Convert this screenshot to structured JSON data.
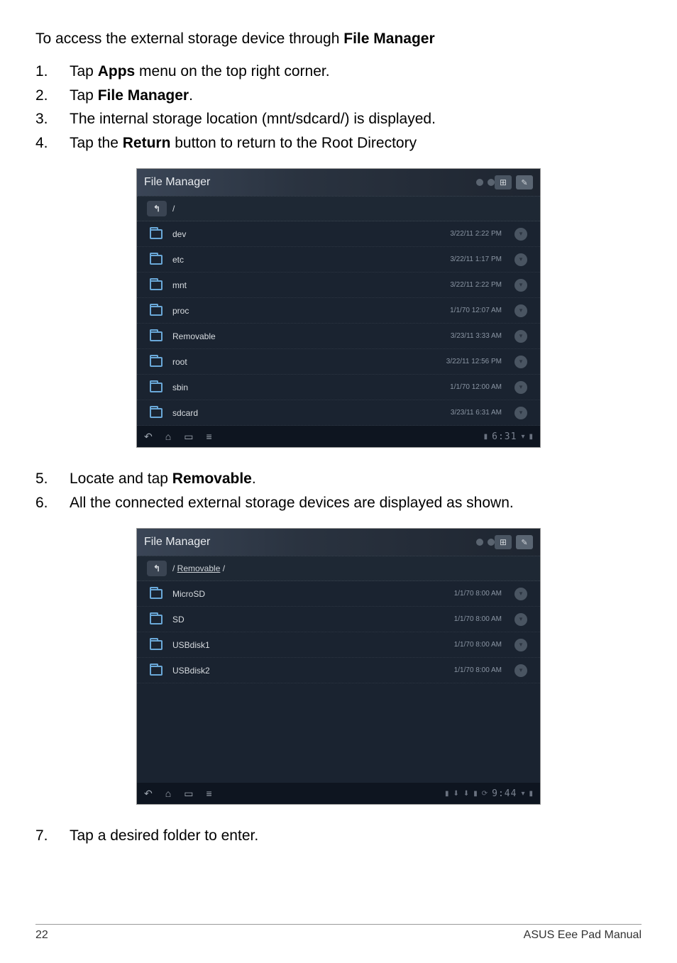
{
  "intro": {
    "prefix": "To access the external storage device through ",
    "bold": "File Manager"
  },
  "steps1": [
    {
      "num": "1.",
      "pre": "Tap ",
      "b": "Apps",
      "post": " menu on the top right corner."
    },
    {
      "num": "2.",
      "pre": "Tap ",
      "b": "File Manager",
      "post": "."
    },
    {
      "num": "3.",
      "text": "The internal storage location (mnt/sdcard/) is displayed."
    },
    {
      "num": "4.",
      "pre": "Tap the ",
      "b": "Return",
      "post": " button to return to the Root Directory"
    }
  ],
  "steps2": [
    {
      "num": "5.",
      "pre": "Locate and tap ",
      "b": "Removable",
      "post": "."
    },
    {
      "num": "6.",
      "text": "All the connected external storage devices are displayed as shown."
    }
  ],
  "steps3": [
    {
      "num": "7.",
      "text": "Tap a desired folder to enter."
    }
  ],
  "shot1": {
    "title": "File Manager",
    "path": "/",
    "files": [
      {
        "name": "dev",
        "date": "3/22/11 2:22 PM"
      },
      {
        "name": "etc",
        "date": "3/22/11 1:17 PM"
      },
      {
        "name": "mnt",
        "date": "3/22/11 2:22 PM"
      },
      {
        "name": "proc",
        "date": "1/1/70 12:07 AM"
      },
      {
        "name": "Removable",
        "date": "3/23/11 3:33 AM"
      },
      {
        "name": "root",
        "date": "3/22/11 12:56 PM"
      },
      {
        "name": "sbin",
        "date": "1/1/70 12:00 AM"
      },
      {
        "name": "sdcard",
        "date": "3/23/11 6:31 AM"
      }
    ],
    "clock": "6:31"
  },
  "shot2": {
    "title": "File Manager",
    "path_prefix": "/ ",
    "path_link": "Removable",
    "path_suffix": " /",
    "files": [
      {
        "name": "MicroSD",
        "date": "1/1/70 8:00 AM"
      },
      {
        "name": "SD",
        "date": "1/1/70 8:00 AM"
      },
      {
        "name": "USBdisk1",
        "date": "1/1/70 8:00 AM"
      },
      {
        "name": "USBdisk2",
        "date": "1/1/70 8:00 AM"
      }
    ],
    "clock": "9:44",
    "blank_height": 140
  },
  "footer": {
    "page": "22",
    "title": "ASUS Eee Pad Manual"
  },
  "colors": {
    "screenshot_bg": "#1a2330",
    "header_gradient_start": "#3a4556",
    "folder_border": "#6aa8d8",
    "text_light": "#d8dce0",
    "date_text": "#8a95a3"
  }
}
